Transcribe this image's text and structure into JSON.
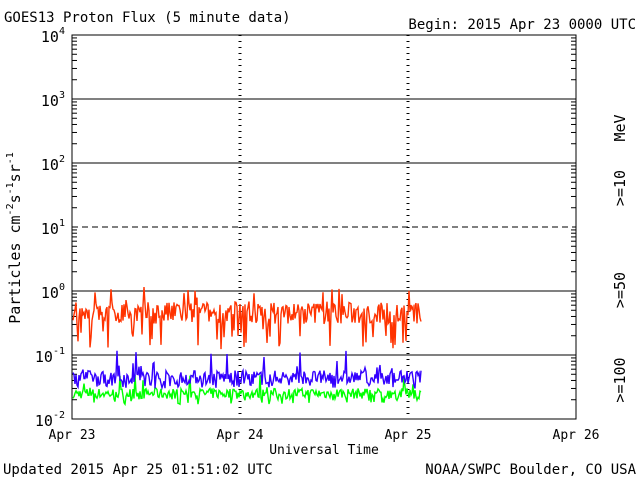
{
  "header": {
    "title": "GOES13 Proton Flux (5 minute data)",
    "begin": "Begin: 2015 Apr 23 0000 UTC"
  },
  "footer": {
    "updated": "Updated 2015 Apr 25 01:51:02 UTC",
    "credit": "NOAA/SWPC Boulder, CO USA"
  },
  "chart_data": {
    "type": "line",
    "title": "GOES13 Proton Flux (5 minute data)",
    "xlabel": "Universal Time",
    "ylabel_parts": [
      "Particles cm",
      "-2",
      "s",
      "-1",
      "sr",
      "-1"
    ],
    "yscale": "log",
    "ylim": [
      0.01,
      10000
    ],
    "xlim_days": [
      0,
      3
    ],
    "y_ticks": [
      {
        "value": 0.01,
        "base": "10",
        "exp": "-2"
      },
      {
        "value": 0.1,
        "base": "10",
        "exp": "-1"
      },
      {
        "value": 1,
        "base": "10",
        "exp": "0"
      },
      {
        "value": 10,
        "base": "10",
        "exp": "1"
      },
      {
        "value": 100,
        "base": "10",
        "exp": "2"
      },
      {
        "value": 1000,
        "base": "10",
        "exp": "3"
      },
      {
        "value": 10000,
        "base": "10",
        "exp": "4"
      }
    ],
    "x_ticks": [
      {
        "day": 0,
        "label": "Apr 23"
      },
      {
        "day": 1,
        "label": "Apr 24"
      },
      {
        "day": 2,
        "label": "Apr 25"
      },
      {
        "day": 3,
        "label": "Apr 26"
      }
    ],
    "threshold_line": {
      "value": 10,
      "style": "dashed"
    },
    "data_end_day": 2.08,
    "legend_unit": "MeV",
    "series": [
      {
        "name": ">=10",
        "color": "#ff3300",
        "baseline": 0.45,
        "range": [
          0.12,
          1.2
        ]
      },
      {
        "name": ">=50",
        "color": "#3300ff",
        "baseline": 0.045,
        "range": [
          0.03,
          0.12
        ]
      },
      {
        "name": ">=100",
        "color": "#00ff00",
        "baseline": 0.025,
        "range": [
          0.017,
          0.05
        ]
      }
    ]
  }
}
